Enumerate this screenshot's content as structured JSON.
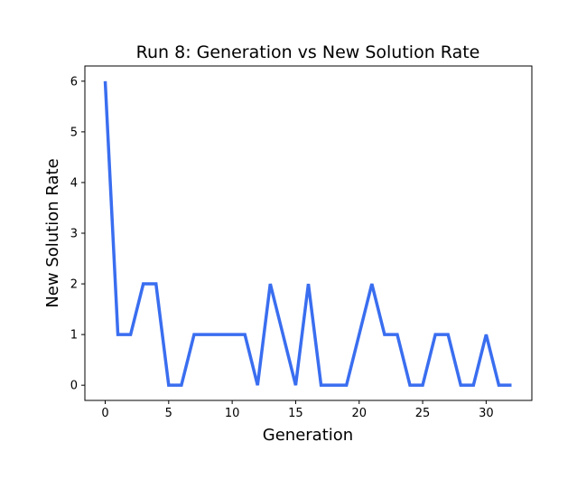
{
  "chart_data": {
    "type": "line",
    "title": "Run 8: Generation vs New Solution Rate",
    "xlabel": "Generation",
    "ylabel": "New Solution Rate",
    "xlim": [
      -1.6,
      33.6
    ],
    "ylim": [
      -0.3,
      6.3
    ],
    "xticks": [
      0,
      5,
      10,
      15,
      20,
      25,
      30
    ],
    "yticks": [
      0,
      1,
      2,
      3,
      4,
      5,
      6
    ],
    "grid": false,
    "line_color": "#3a6ef0",
    "series": [
      {
        "x": [
          0,
          1,
          2,
          3,
          4,
          5,
          6,
          7,
          8,
          9,
          10,
          11,
          12,
          13,
          14,
          15,
          16,
          17,
          18,
          19,
          20,
          21,
          22,
          23,
          24,
          25,
          26,
          27,
          28,
          29,
          30,
          31,
          32
        ],
        "values": [
          6,
          1,
          1,
          2,
          2,
          0,
          0,
          1,
          1,
          1,
          1,
          1,
          0,
          2,
          1,
          0,
          2,
          0,
          0,
          0,
          1,
          2,
          1,
          1,
          0,
          0,
          1,
          1,
          0,
          0,
          1,
          0,
          0
        ]
      }
    ]
  }
}
